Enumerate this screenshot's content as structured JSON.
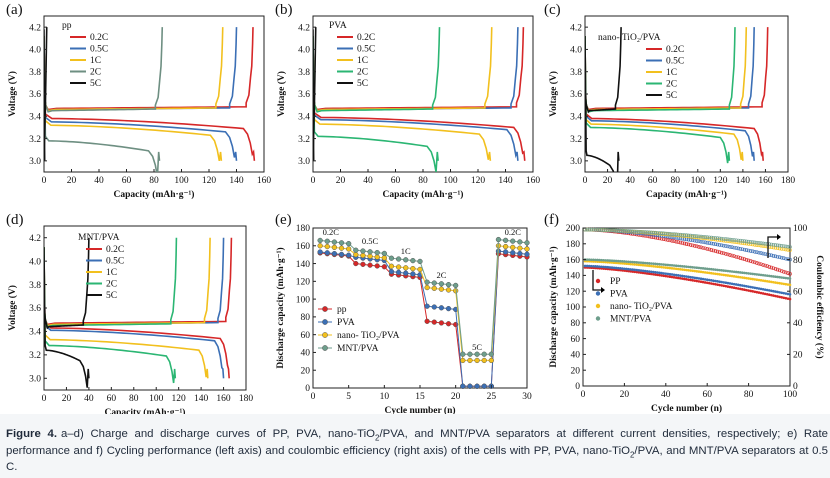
{
  "chart_data": [
    {
      "panel": "(a)",
      "type": "line",
      "legend_title": "pp",
      "xlabel": "Capacity (mAh·g⁻¹)",
      "ylabel": "Voltage (V)",
      "xlim": [
        0,
        160
      ],
      "ylim": [
        2.9,
        4.3
      ],
      "xticks": [
        "0",
        "20",
        "40",
        "60",
        "80",
        "100",
        "120",
        "140",
        "160"
      ],
      "yticks": [
        "3.0",
        "3.2",
        "3.4",
        "3.6",
        "3.8",
        "4.0",
        "4.2"
      ],
      "series": [
        {
          "name": "0.2C",
          "color": "#d62728",
          "charge_capacity": 152,
          "discharge_capacity": 153,
          "charge_plateau": 3.47,
          "discharge_plateau": 3.38
        },
        {
          "name": "0.5C",
          "color": "#3b6fb5",
          "charge_capacity": 140,
          "discharge_capacity": 140,
          "charge_plateau": 3.46,
          "discharge_plateau": 3.35
        },
        {
          "name": "1C",
          "color": "#f2c01e",
          "charge_capacity": 130,
          "discharge_capacity": 129,
          "charge_plateau": 3.46,
          "discharge_plateau": 3.32
        },
        {
          "name": "2C",
          "color": "#6e8f82",
          "charge_capacity": 86,
          "discharge_capacity": 84,
          "charge_plateau": 3.45,
          "discharge_plateau": 3.18
        },
        {
          "name": "5C",
          "color": "#111111",
          "charge_capacity": 0,
          "discharge_capacity": 0,
          "charge_plateau": 3.6,
          "discharge_plateau": 3.0
        }
      ]
    },
    {
      "panel": "(b)",
      "type": "line",
      "legend_title": "PVA",
      "xlabel": "Capacity (mAh·g⁻¹)",
      "ylabel": "Voltage (V)",
      "xlim": [
        0,
        160
      ],
      "ylim": [
        2.9,
        4.3
      ],
      "xticks": [
        "0",
        "20",
        "40",
        "60",
        "80",
        "100",
        "120",
        "140",
        "160"
      ],
      "yticks": [
        "3.0",
        "3.2",
        "3.4",
        "3.6",
        "3.8",
        "4.0",
        "4.2"
      ],
      "series": [
        {
          "name": "0.2C",
          "color": "#d62728",
          "charge_capacity": 153,
          "discharge_capacity": 154,
          "charge_plateau": 3.47,
          "discharge_plateau": 3.39
        },
        {
          "name": "0.5C",
          "color": "#3b6fb5",
          "charge_capacity": 149,
          "discharge_capacity": 149,
          "charge_plateau": 3.46,
          "discharge_plateau": 3.37
        },
        {
          "name": "1C",
          "color": "#f2c01e",
          "charge_capacity": 130,
          "discharge_capacity": 129,
          "charge_plateau": 3.46,
          "discharge_plateau": 3.33
        },
        {
          "name": "2C",
          "color": "#2bb673",
          "charge_capacity": 92,
          "discharge_capacity": 91,
          "charge_plateau": 3.45,
          "discharge_plateau": 3.22
        },
        {
          "name": "5C",
          "color": "#111111",
          "charge_capacity": 0,
          "discharge_capacity": 0,
          "charge_plateau": 3.6,
          "discharge_plateau": 3.0
        }
      ]
    },
    {
      "panel": "(c)",
      "type": "line",
      "legend_title": "nano- TiO₂/PVA",
      "xlabel": "Capacity (mAh·g⁻¹)",
      "ylabel": "Voltage (V)",
      "xlim": [
        0,
        180
      ],
      "ylim": [
        2.9,
        4.3
      ],
      "xticks": [
        "0",
        "20",
        "40",
        "60",
        "80",
        "100",
        "120",
        "140",
        "160",
        "180"
      ],
      "yticks": [
        "3.0",
        "3.2",
        "3.4",
        "3.6",
        "3.8",
        "4.0",
        "4.2"
      ],
      "series": [
        {
          "name": "0.2C",
          "color": "#d62728",
          "charge_capacity": 162,
          "discharge_capacity": 158,
          "charge_plateau": 3.47,
          "discharge_plateau": 3.38
        },
        {
          "name": "0.5C",
          "color": "#3b6fb5",
          "charge_capacity": 150,
          "discharge_capacity": 150,
          "charge_plateau": 3.46,
          "discharge_plateau": 3.36
        },
        {
          "name": "1C",
          "color": "#f2c01e",
          "charge_capacity": 143,
          "discharge_capacity": 140,
          "charge_plateau": 3.46,
          "discharge_plateau": 3.33
        },
        {
          "name": "2C",
          "color": "#2bb673",
          "charge_capacity": 133,
          "discharge_capacity": 128,
          "charge_plateau": 3.45,
          "discharge_plateau": 3.3
        },
        {
          "name": "5C",
          "color": "#111111",
          "charge_capacity": 32,
          "discharge_capacity": 30,
          "charge_plateau": 3.45,
          "discharge_plateau": 3.05
        }
      ]
    },
    {
      "panel": "(d)",
      "type": "line",
      "legend_title": "MNT/PVA",
      "xlabel": "Capacity (mAh·g⁻¹)",
      "ylabel": "Voltage (V)",
      "xlim": [
        0,
        180
      ],
      "ylim": [
        2.9,
        4.3
      ],
      "xticks": [
        "0",
        "20",
        "40",
        "60",
        "80",
        "100",
        "120",
        "140",
        "160",
        "180"
      ],
      "yticks": [
        "3.0",
        "3.2",
        "3.4",
        "3.6",
        "3.8",
        "4.0",
        "4.2"
      ],
      "series": [
        {
          "name": "0.2C",
          "color": "#d62728",
          "charge_capacity": 167,
          "discharge_capacity": 165,
          "charge_plateau": 3.47,
          "discharge_plateau": 3.43
        },
        {
          "name": "0.5C",
          "color": "#3b6fb5",
          "charge_capacity": 160,
          "discharge_capacity": 160,
          "charge_plateau": 3.46,
          "discharge_plateau": 3.41
        },
        {
          "name": "1C",
          "color": "#f2c01e",
          "charge_capacity": 148,
          "discharge_capacity": 146,
          "charge_plateau": 3.46,
          "discharge_plateau": 3.33
        },
        {
          "name": "2C",
          "color": "#2bb673",
          "charge_capacity": 118,
          "discharge_capacity": 117,
          "charge_plateau": 3.45,
          "discharge_plateau": 3.28
        },
        {
          "name": "5C",
          "color": "#111111",
          "charge_capacity": 40,
          "discharge_capacity": 40,
          "charge_plateau": 3.44,
          "discharge_plateau": 3.24
        }
      ]
    },
    {
      "panel": "(e)",
      "type": "scatter",
      "xlabel": "Cycle number (n)",
      "ylabel": "Discharge capacity (mAh·g⁻¹)",
      "xlim": [
        0,
        30
      ],
      "ylim": [
        0,
        180
      ],
      "xticks": [
        "0",
        "5",
        "10",
        "15",
        "20",
        "25",
        "30"
      ],
      "yticks": [
        "0",
        "20",
        "40",
        "60",
        "80",
        "100",
        "120",
        "140",
        "160",
        "180"
      ],
      "rate_labels": [
        "0.2C",
        "0.5C",
        "1C",
        "2C",
        "5C",
        "0.2C"
      ],
      "segments_rate": [
        "0.2C",
        "0.5C",
        "1C",
        "2C",
        "5C",
        "0.2C"
      ],
      "series": [
        {
          "name": "pp",
          "color": "#d62728",
          "marker": "circle",
          "segment_values": [
            152,
            140,
            128,
            75,
            2,
            151
          ]
        },
        {
          "name": "PVA",
          "color": "#3b6fb5",
          "marker": "circle",
          "segment_values": [
            153,
            147,
            131,
            92,
            2,
            154
          ]
        },
        {
          "name": "nano- TiO₂/PVA",
          "color": "#f2c01e",
          "marker": "circle",
          "segment_values": [
            160,
            150,
            137,
            113,
            31,
            160
          ]
        },
        {
          "name": "MNT/PVA",
          "color": "#6e9e8c",
          "marker": "circle",
          "segment_values": [
            166,
            155,
            146,
            119,
            38,
            167
          ]
        }
      ]
    },
    {
      "panel": "(f)",
      "type": "scatter",
      "xlabel": "Cycle number (n)",
      "ylabel": "Discharge capacity (mAh·g⁻¹)",
      "y2label": "Coulombic efficiency (%)",
      "xlim": [
        0,
        100
      ],
      "ylim": [
        0,
        200
      ],
      "y2lim": [
        0,
        100
      ],
      "xticks": [
        "0",
        "20",
        "40",
        "60",
        "80",
        "100"
      ],
      "yticks": [
        "0",
        "20",
        "40",
        "60",
        "80",
        "100",
        "120",
        "140",
        "160",
        "180",
        "200"
      ],
      "y2ticks": [
        "0",
        "20",
        "40",
        "60",
        "80",
        "100"
      ],
      "series": [
        {
          "name": "PP",
          "color": "#d62728",
          "capacity_start": 150,
          "capacity_end": 110,
          "efficiency_start": 99,
          "efficiency_end": 71
        },
        {
          "name": "PVA",
          "color": "#3b6fb5",
          "capacity_start": 152,
          "capacity_end": 116,
          "efficiency_start": 99,
          "efficiency_end": 80
        },
        {
          "name": "nano- TiO₂/PVA",
          "color": "#f2c01e",
          "capacity_start": 158,
          "capacity_end": 128,
          "efficiency_start": 99,
          "efficiency_end": 86
        },
        {
          "name": "MNT/PVA",
          "color": "#6e9e8c",
          "capacity_start": 160,
          "capacity_end": 136,
          "efficiency_start": 99,
          "efficiency_end": 88
        }
      ]
    }
  ],
  "caption": {
    "label": "Figure 4.",
    "segments": [
      "a–d) Charge and discharge curves of PP, PVA, nano-TiO",
      "2",
      "/PVA, and MNT/PVA separators at different current densities, respectively; e) Rate performance and f) Cycling performance (left axis) and coulombic efficiency (right axis) of the cells with PP, PVA, nano-TiO",
      "2",
      "/PVA, and MNT/PVA separators at 0.5 C."
    ]
  }
}
